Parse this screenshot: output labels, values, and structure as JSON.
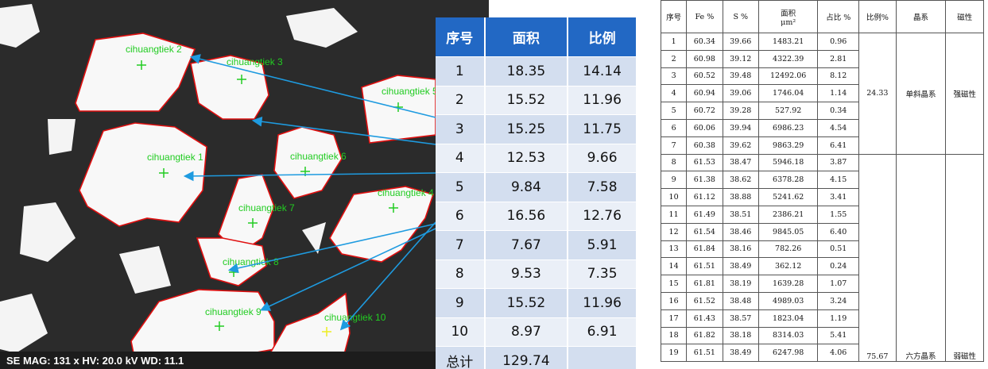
{
  "sem_image": {
    "labels": [
      "cihuangtiek 2",
      "cihuangtiek 3",
      "cihuangtiek 5",
      "cihuangtiek 1",
      "cihuangtiek 6",
      "cihuangtiek 7",
      "cihuangtiek 4",
      "cihuangtiek 8",
      "cihuangtiek 9",
      "cihuangtiek 10"
    ],
    "info_bar": "SE  MAG: 131 x  HV: 20.0 kV  WD: 11.1"
  },
  "area_table": {
    "header": [
      "序号",
      "面积",
      "比例"
    ],
    "rows": [
      [
        "1",
        "18.35",
        "14.14"
      ],
      [
        "2",
        "15.52",
        "11.96"
      ],
      [
        "3",
        "15.25",
        "11.75"
      ],
      [
        "4",
        "12.53",
        "9.66"
      ],
      [
        "5",
        "9.84",
        "7.58"
      ],
      [
        "6",
        "16.56",
        "12.76"
      ],
      [
        "7",
        "7.67",
        "5.91"
      ],
      [
        "8",
        "9.53",
        "7.35"
      ],
      [
        "9",
        "15.52",
        "11.96"
      ],
      [
        "10",
        "8.97",
        "6.91"
      ]
    ],
    "total": {
      "label": "总计",
      "value": "129.74"
    }
  },
  "composition_table": {
    "header": [
      "序号",
      "Fe %",
      "S %",
      {
        "label": "面积",
        "unit": "μm²"
      },
      "占比 %",
      "比例%",
      "晶系",
      "磁性"
    ],
    "groups": [
      {
        "ratio": "24.33",
        "crystal_system": "单斜晶系",
        "magnetism": "强磁性",
        "rows": [
          [
            "1",
            "60.34",
            "39.66",
            "1483.21",
            "0.96"
          ],
          [
            "2",
            "60.98",
            "39.12",
            "4322.39",
            "2.81"
          ],
          [
            "3",
            "60.52",
            "39.48",
            "12492.06",
            "8.12"
          ],
          [
            "4",
            "60.94",
            "39.06",
            "1746.04",
            "1.14"
          ],
          [
            "5",
            "60.72",
            "39.28",
            "527.92",
            "0.34"
          ],
          [
            "6",
            "60.06",
            "39.94",
            "6986.23",
            "4.54"
          ],
          [
            "7",
            "60.38",
            "39.62",
            "9863.29",
            "6.41"
          ]
        ]
      },
      {
        "ratio": "75.67",
        "crystal_system": "六方晶系",
        "magnetism": "弱磁性",
        "rows": [
          [
            "8",
            "61.53",
            "38.47",
            "5946.18",
            "3.87"
          ],
          [
            "9",
            "61.38",
            "38.62",
            "6378.28",
            "4.15"
          ],
          [
            "10",
            "61.12",
            "38.88",
            "5241.62",
            "3.41"
          ],
          [
            "11",
            "61.49",
            "38.51",
            "2386.21",
            "1.55"
          ],
          [
            "12",
            "61.54",
            "38.46",
            "9845.05",
            "6.40"
          ],
          [
            "13",
            "61.84",
            "38.16",
            "782.26",
            "0.51"
          ],
          [
            "14",
            "61.51",
            "38.49",
            "362.12",
            "0.24"
          ],
          [
            "15",
            "61.81",
            "38.19",
            "1639.28",
            "1.07"
          ],
          [
            "16",
            "61.52",
            "38.48",
            "4989.03",
            "3.24"
          ],
          [
            "17",
            "61.43",
            "38.57",
            "1823.04",
            "1.19"
          ],
          [
            "18",
            "61.82",
            "38.18",
            "8314.03",
            "5.41"
          ],
          [
            "19",
            "61.51",
            "38.49",
            "6247.98",
            "4.06"
          ]
        ]
      }
    ]
  }
}
